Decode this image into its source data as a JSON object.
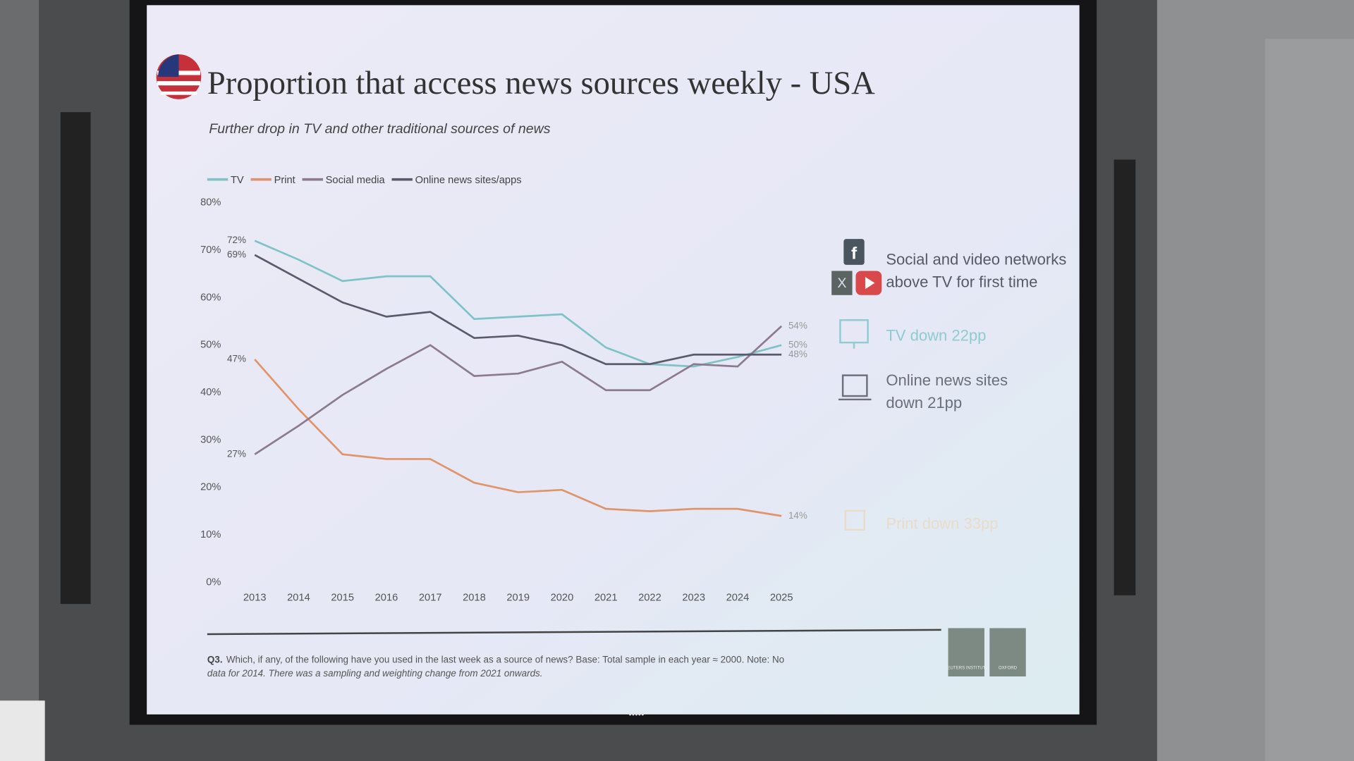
{
  "chart_data": {
    "type": "line",
    "title": "Proportion that access news sources weekly - USA",
    "subtitle": "Further drop in TV and other traditional sources of news",
    "categories": [
      "2013",
      "2014",
      "2015",
      "2016",
      "2017",
      "2018",
      "2019",
      "2020",
      "2021",
      "2022",
      "2023",
      "2024",
      "2025"
    ],
    "series": [
      {
        "name": "TV",
        "color": "#7fc3c6",
        "values": [
          72,
          68,
          63.5,
          64.5,
          64.5,
          55.5,
          56,
          56.5,
          49.5,
          46,
          45.5,
          47.5,
          50
        ],
        "value_labels": [
          "72%",
          null,
          null,
          null,
          null,
          null,
          null,
          null,
          null,
          null,
          null,
          null,
          "50%"
        ]
      },
      {
        "name": "Print",
        "color": "#e0946c",
        "values": [
          47,
          36.5,
          27,
          26,
          26,
          21,
          19,
          19.5,
          15.5,
          15,
          15.5,
          15.5,
          14
        ],
        "value_labels": [
          "47%",
          null,
          null,
          null,
          null,
          null,
          null,
          null,
          null,
          null,
          null,
          null,
          "14%"
        ]
      },
      {
        "name": "Social media",
        "color": "#8c7b8e",
        "values": [
          27,
          33,
          39.5,
          45,
          50,
          43.5,
          44,
          46.5,
          40.5,
          40.5,
          46,
          45.5,
          54
        ],
        "value_labels": [
          "27%",
          null,
          null,
          null,
          null,
          null,
          null,
          null,
          null,
          null,
          null,
          null,
          "54%"
        ]
      },
      {
        "name": "Online news sites/apps",
        "color": "#5b5a6c",
        "values": [
          69,
          64,
          59,
          56,
          57,
          51.5,
          52,
          50,
          46,
          46,
          48,
          48,
          48
        ],
        "value_labels": [
          "69%",
          null,
          null,
          null,
          null,
          null,
          null,
          null,
          null,
          null,
          null,
          null,
          "48%"
        ]
      }
    ],
    "ylim": [
      0,
      80
    ],
    "yticks": [
      {
        "value": 0,
        "label": "0%"
      },
      {
        "value": 10,
        "label": "10%"
      },
      {
        "value": 20,
        "label": "20%"
      },
      {
        "value": 30,
        "label": "30%"
      },
      {
        "value": 40,
        "label": "40%"
      },
      {
        "value": 50,
        "label": "50%"
      },
      {
        "value": 60,
        "label": "60%"
      },
      {
        "value": 70,
        "label": "70%"
      },
      {
        "value": 80,
        "label": "80%"
      }
    ],
    "grid": false,
    "legend": "top-left",
    "annotations": [
      {
        "lines": [
          "Social and video networks",
          "above TV for first time"
        ],
        "color": "#555a66"
      },
      {
        "lines": [
          "TV down 22pp"
        ],
        "color": "#8fcbd0"
      },
      {
        "lines": [
          "Online news sites",
          "down 21pp"
        ],
        "color": "#6c6f7a"
      },
      {
        "lines": [
          "Print down 33pp"
        ],
        "color": "#e9dcc8"
      }
    ],
    "note_label": "Q3.",
    "note": [
      "Which, if any, of the following have you used in the last week as a source of news? Base: Total sample in each year ≈ 2000. Note: No",
      "data for 2014. There was a sampling and weighting change from 2021 onwards."
    ],
    "logos": [
      "REUTERS INSTITUTE",
      "OXFORD"
    ]
  }
}
